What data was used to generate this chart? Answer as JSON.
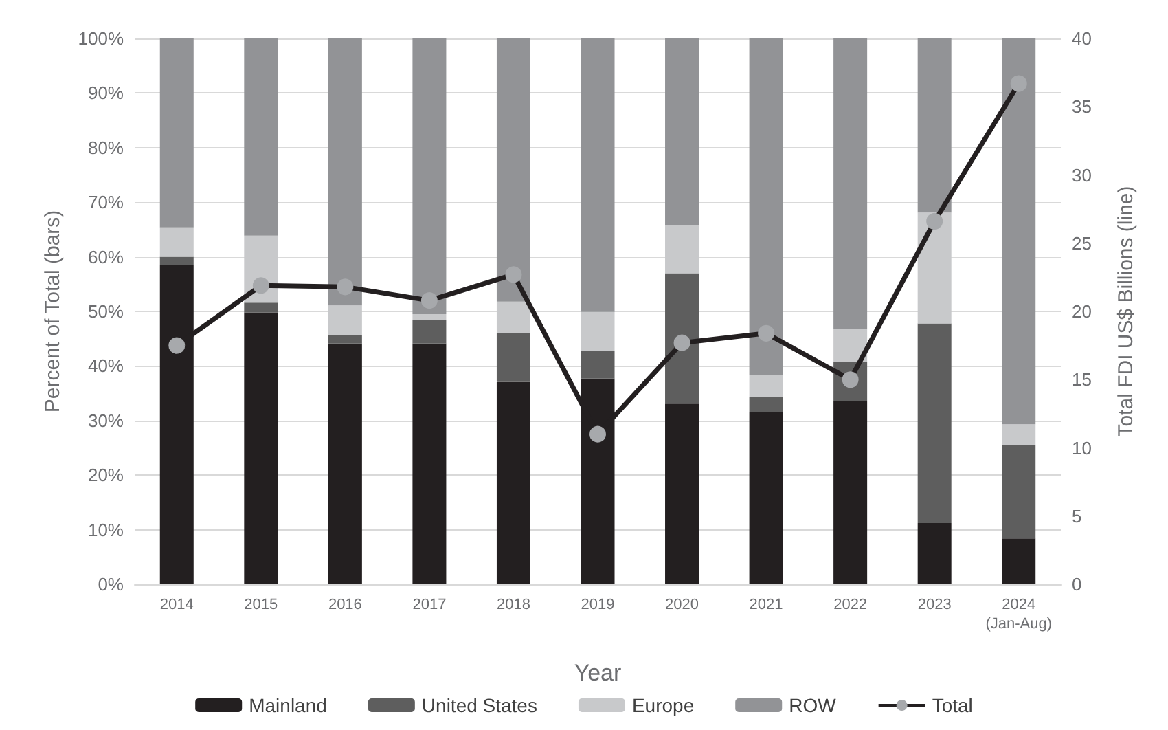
{
  "chart_data": {
    "type": "bar",
    "stacked": true,
    "xlabel": "Year",
    "ylabel": "Percent of Total (bars)",
    "y2label": "Total FDI US$ Billions (line)",
    "categories": [
      "2014",
      "2015",
      "2016",
      "2017",
      "2018",
      "2019",
      "2020",
      "2021",
      "2022",
      "2023",
      "2024\n(Jan-Aug)"
    ],
    "series": [
      {
        "name": "Mainland",
        "color": "#231f20",
        "values": [
          58.5,
          49.8,
          44.1,
          44.1,
          37.1,
          37.7,
          33.1,
          31.5,
          33.5,
          11.2,
          8.4
        ]
      },
      {
        "name": "United States",
        "color": "#5e5e5e",
        "values": [
          1.5,
          1.8,
          1.5,
          4.3,
          9.0,
          5.1,
          23.9,
          2.8,
          7.2,
          36.6,
          17.1
        ]
      },
      {
        "name": "Europe",
        "color": "#c8c9cb",
        "values": [
          5.4,
          12.3,
          5.5,
          1.1,
          5.7,
          7.1,
          8.8,
          4.0,
          6.1,
          20.3,
          3.8
        ]
      },
      {
        "name": "ROW",
        "color": "#929396",
        "values": [
          34.6,
          36.1,
          48.9,
          50.5,
          48.2,
          50.1,
          34.2,
          61.7,
          53.2,
          31.9,
          70.7
        ]
      },
      {
        "name": "Total",
        "type": "line",
        "axis": "y2",
        "color": "#231f20",
        "marker": "circle",
        "values": [
          17.5,
          21.9,
          21.8,
          20.8,
          22.7,
          11.0,
          17.7,
          18.4,
          15.0,
          26.6,
          36.7
        ]
      }
    ],
    "ylim": [
      0,
      100
    ],
    "yticks": [
      {
        "value": 0,
        "label": "0%"
      },
      {
        "value": 10,
        "label": "10%"
      },
      {
        "value": 20,
        "label": "20%"
      },
      {
        "value": 30,
        "label": "30%"
      },
      {
        "value": 40,
        "label": "40%"
      },
      {
        "value": 50,
        "label": "50%"
      },
      {
        "value": 60,
        "label": "60%"
      },
      {
        "value": 70,
        "label": "70%"
      },
      {
        "value": 80,
        "label": "80%"
      },
      {
        "value": 90,
        "label": "90%"
      },
      {
        "value": 100,
        "label": "100%"
      }
    ],
    "y2lim": [
      0,
      40
    ],
    "y2ticks": [
      0,
      5,
      10,
      15,
      20,
      25,
      30,
      35,
      40
    ],
    "grid": "y",
    "legend": "bottom"
  }
}
